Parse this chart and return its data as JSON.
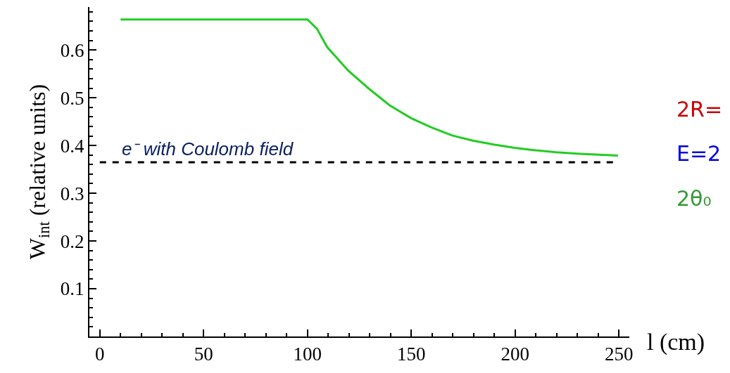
{
  "chart_data": {
    "type": "line",
    "xlabel": "l (cm)",
    "ylabel": "W$_{int}$ (relative units)",
    "x": [
      10,
      100,
      104.5,
      109.5,
      119.6,
      129.6,
      139.6,
      150,
      159.7,
      169.7,
      179.7,
      189.7,
      199.8,
      209.8,
      219.8,
      229.9,
      249.5
    ],
    "series": [
      {
        "color": "#22cc22",
        "values": [
          0.664,
          0.664,
          0.645,
          0.606,
          0.557,
          0.519,
          0.484,
          0.457,
          0.438,
          0.421,
          0.41,
          0.402,
          0.395,
          0.39,
          0.386,
          0.383,
          0.379
        ]
      }
    ],
    "xlim": [
      -5,
      255
    ],
    "xticks": [
      0,
      50,
      100,
      150,
      200,
      250
    ],
    "ylim": [
      0,
      0.69
    ],
    "yticks": [
      0.1,
      0.2,
      0.3,
      0.4,
      0.5,
      0.6
    ],
    "ref_lines": [
      {
        "axis": "y",
        "value": 0.365,
        "label": "e⁻ with Coulomb field",
        "color": "#000000",
        "line_style": "dashed"
      }
    ],
    "annotations": [
      "2R=",
      "E=2",
      "2θ₀"
    ],
    "marker": "none",
    "line_style": "solid"
  }
}
